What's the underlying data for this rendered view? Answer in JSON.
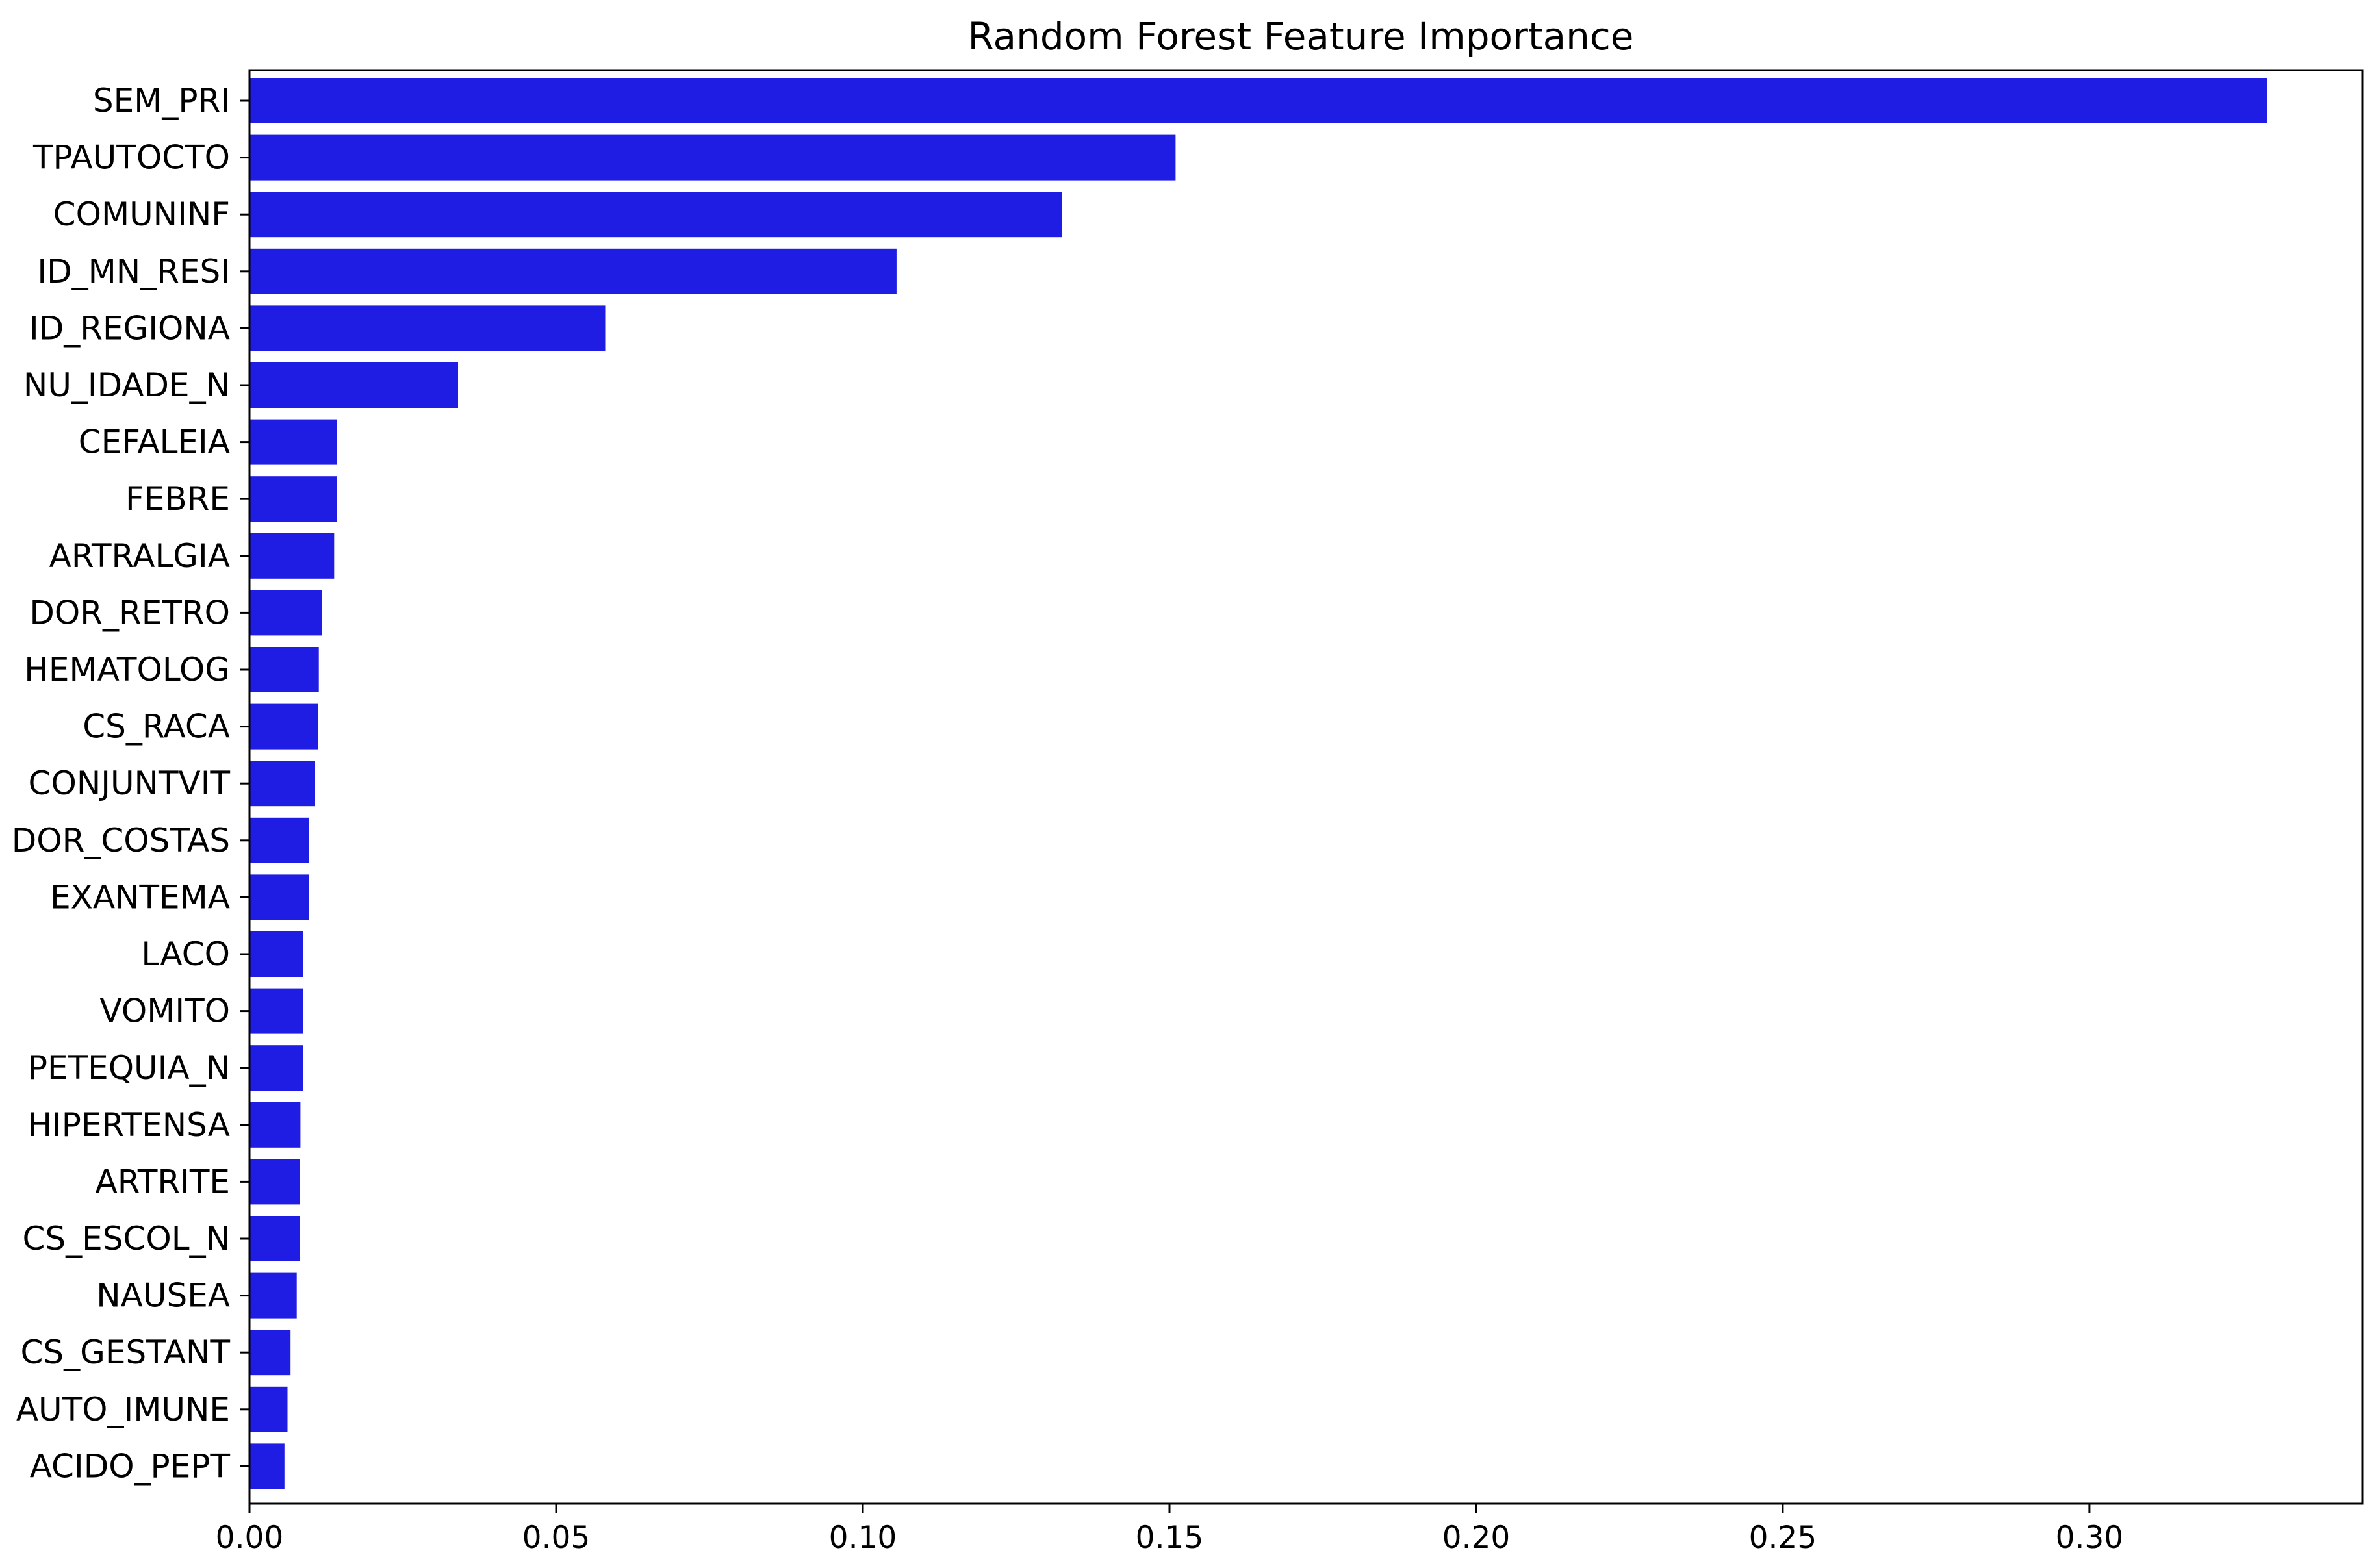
{
  "chart_data": {
    "type": "bar",
    "orientation": "horizontal",
    "title": "Random Forest Feature Importance",
    "xlabel": "",
    "ylabel": "",
    "xlim": [
      0,
      0.3445
    ],
    "x_ticks": [
      "0.00",
      "0.05",
      "0.10",
      "0.15",
      "0.20",
      "0.25",
      "0.30"
    ],
    "x_tick_values": [
      0,
      0.05,
      0.1,
      0.15,
      0.2,
      0.25,
      0.3
    ],
    "grid": false,
    "bar_color": "#1f1de3",
    "categories": [
      "SEM_PRI",
      "TPAUTOCTO",
      "COMUNINF",
      "ID_MN_RESI",
      "ID_REGIONA",
      "NU_IDADE_N",
      "CEFALEIA",
      "FEBRE",
      "ARTRALGIA",
      "DOR_RETRO",
      "HEMATOLOG",
      "CS_RACA",
      "CONJUNTVIT",
      "DOR_COSTAS",
      "EXANTEMA",
      "LACO",
      "VOMITO",
      "PETEQUIA_N",
      "HIPERTENSA",
      "ARTRITE",
      "CS_ESCOL_N",
      "NAUSEA",
      "CS_GESTANT",
      "AUTO_IMUNE",
      "ACIDO_PEPT"
    ],
    "values": [
      0.329,
      0.151,
      0.1325,
      0.1055,
      0.058,
      0.034,
      0.0143,
      0.0143,
      0.0138,
      0.0118,
      0.0113,
      0.0112,
      0.0107,
      0.0097,
      0.0097,
      0.0087,
      0.0087,
      0.0087,
      0.0083,
      0.0082,
      0.0082,
      0.0077,
      0.0067,
      0.0062,
      0.0057
    ]
  }
}
